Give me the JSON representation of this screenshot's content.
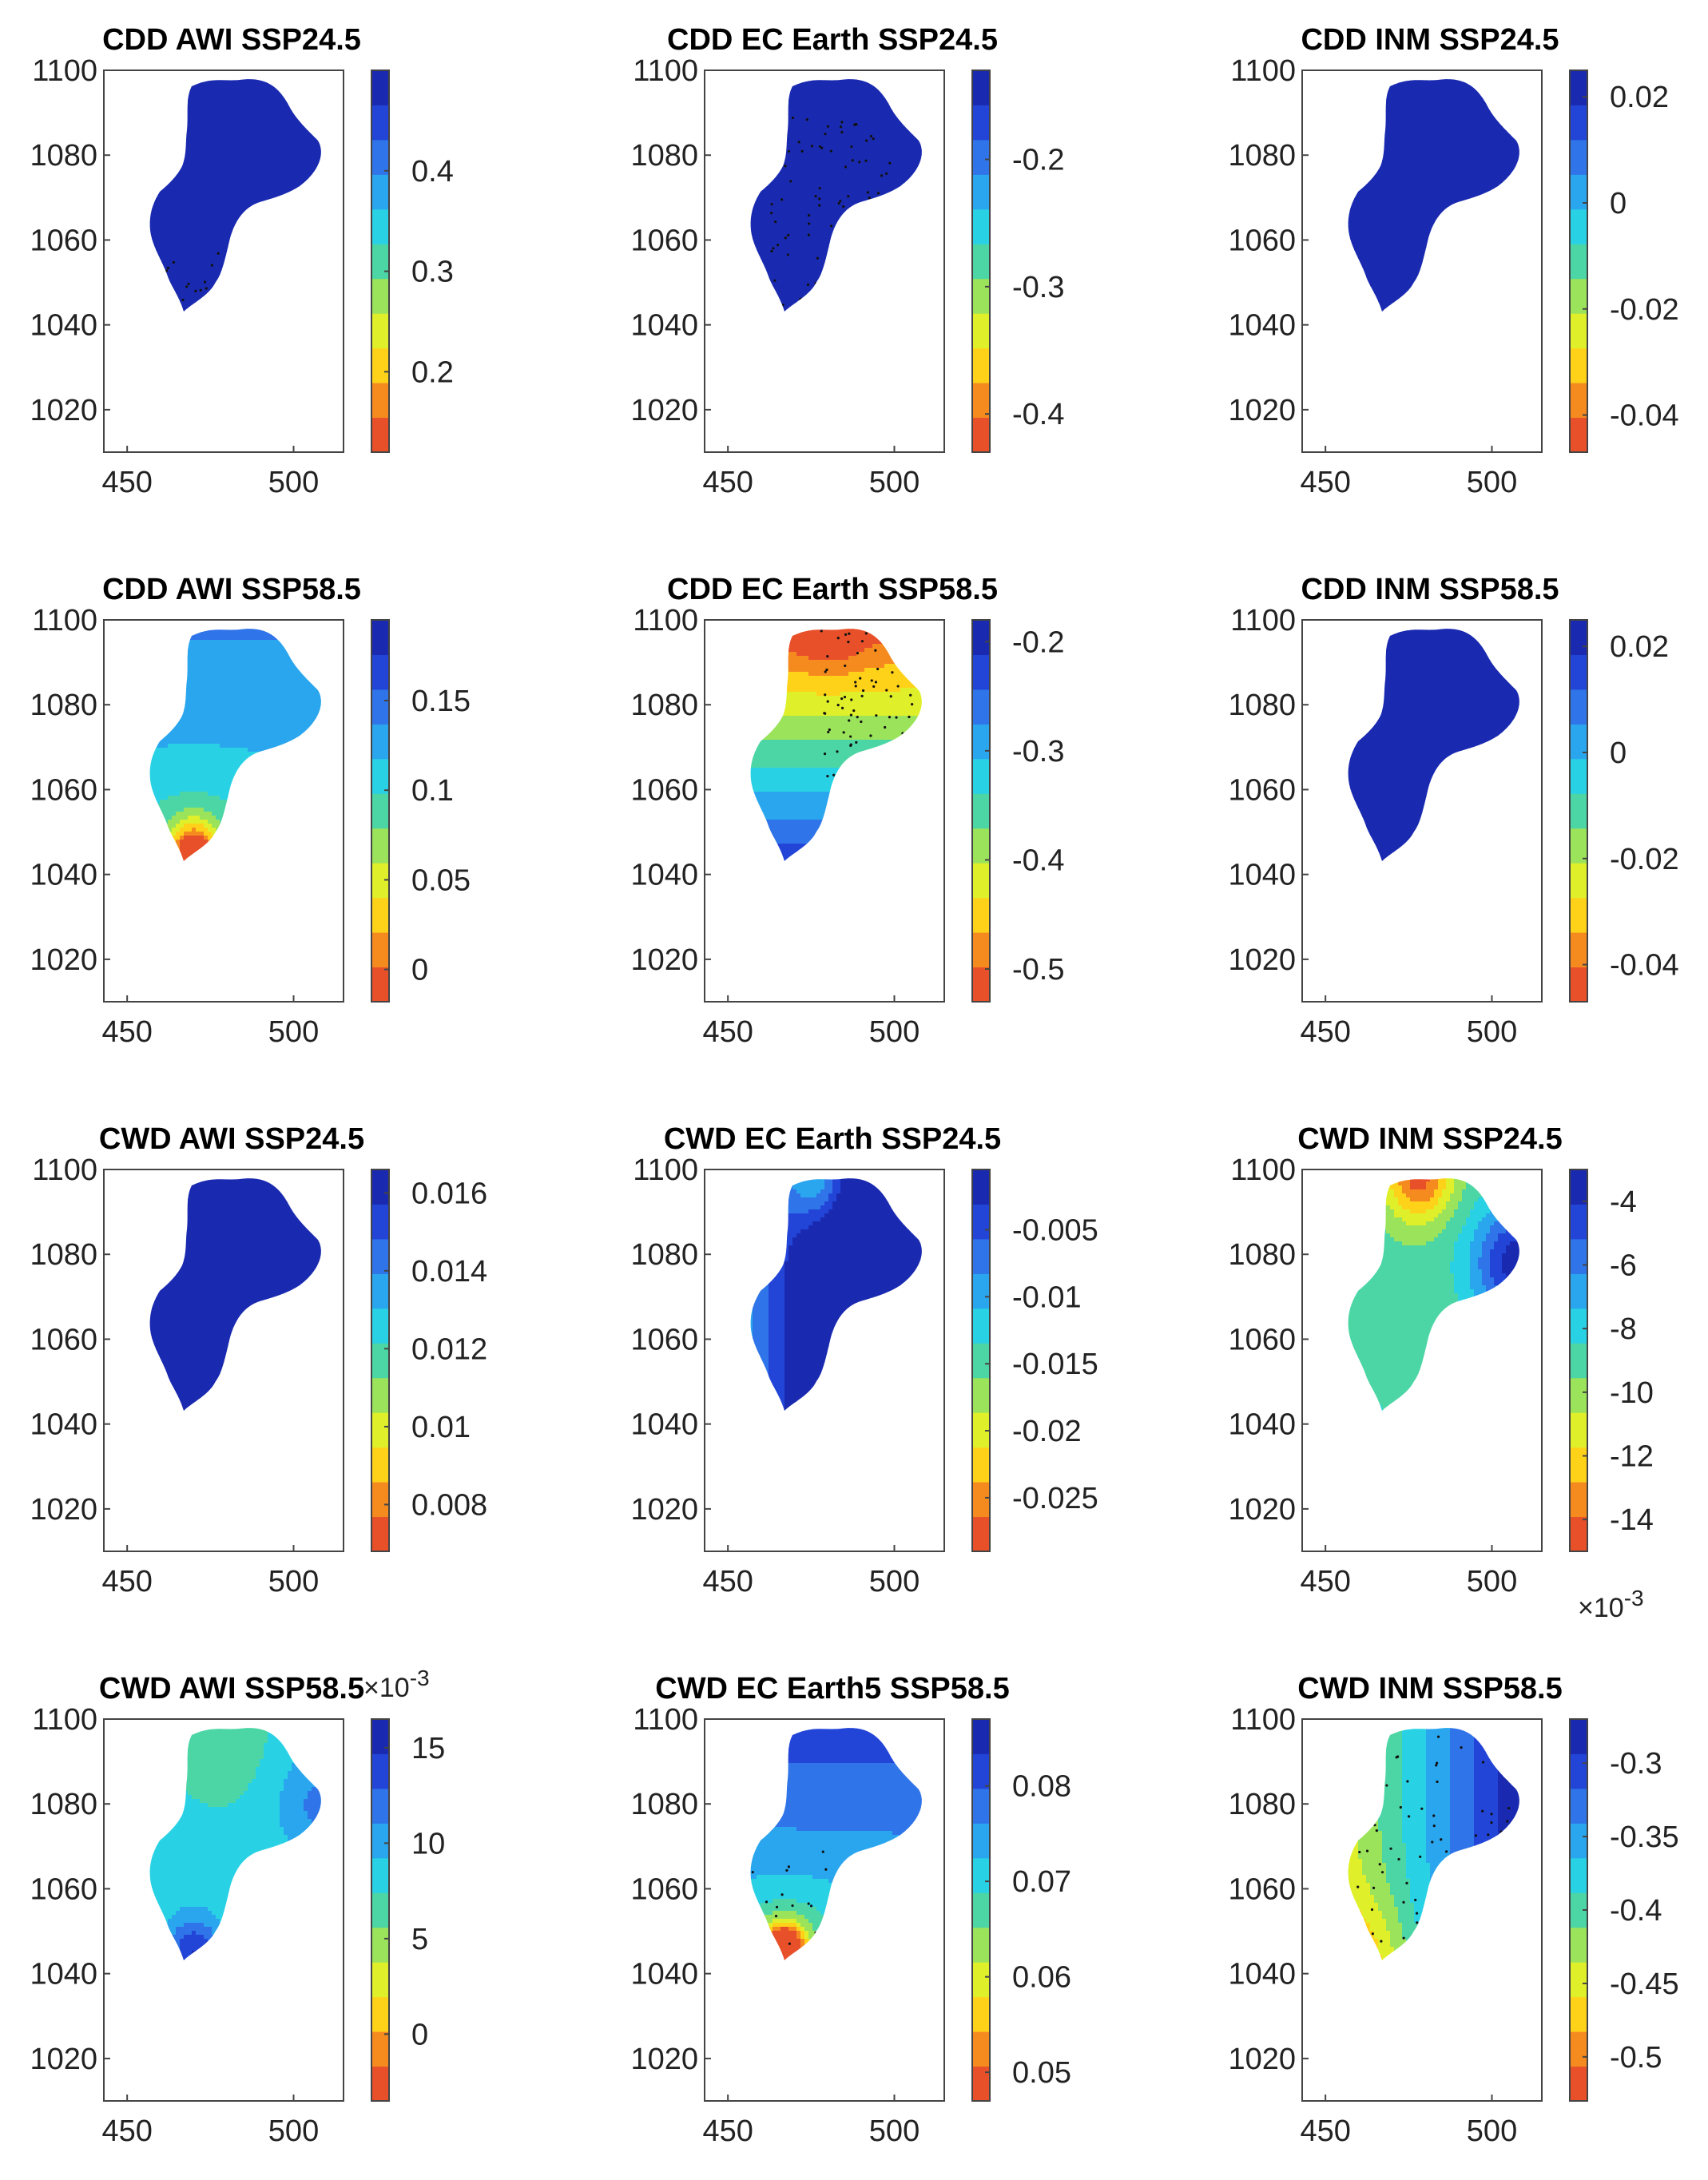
{
  "chart_data": [
    {
      "type": "heatmap",
      "title": "CDD AWI SSP24.5",
      "xticks": [
        "450",
        "500"
      ],
      "yticks": [
        "1100",
        "1080",
        "1060",
        "1040",
        "1020"
      ],
      "xlim": [
        443,
        515
      ],
      "ylim": [
        1010,
        1100
      ],
      "colorbar": {
        "ticks": [
          "0.4",
          "0.3",
          "0.2"
        ],
        "tick_values": [
          0.4,
          0.3,
          0.2
        ],
        "range": [
          0.12,
          0.5
        ],
        "exponent": ""
      },
      "field": {
        "base": 0.42,
        "gx": 0.0,
        "gy": 0.0004,
        "spots": [
          {
            "x": 470,
            "y": 1048,
            "amp": 0.08,
            "s": 5
          },
          {
            "x": 455,
            "y": 1030,
            "amp": -0.26,
            "s": 7
          },
          {
            "x": 467,
            "y": 1025,
            "amp": -0.12,
            "s": 12
          }
        ]
      },
      "stipple": [
        458,
        490,
        1012,
        1058
      ]
    },
    {
      "type": "heatmap",
      "title": "CDD EC Earth SSP24.5",
      "xticks": [
        "450",
        "500"
      ],
      "yticks": [
        "1100",
        "1080",
        "1060",
        "1040",
        "1020"
      ],
      "xlim": [
        443,
        515
      ],
      "ylim": [
        1010,
        1100
      ],
      "colorbar": {
        "ticks": [
          "-0.2",
          "-0.3",
          "-0.4"
        ],
        "tick_values": [
          -0.2,
          -0.3,
          -0.4
        ],
        "range": [
          -0.43,
          -0.13
        ],
        "exponent": ""
      },
      "field": {
        "base": -0.2,
        "gx": -0.001,
        "gy": 0.0008,
        "spots": [
          {
            "x": 460,
            "y": 1042,
            "amp": -0.22,
            "s": 16
          },
          {
            "x": 472,
            "y": 1005,
            "amp": 0.3,
            "s": 7
          }
        ]
      },
      "stipple": [
        462,
        500,
        1025,
        1090
      ]
    },
    {
      "type": "heatmap",
      "title": "CDD INM SSP24.5",
      "xticks": [
        "450",
        "500"
      ],
      "yticks": [
        "1100",
        "1080",
        "1060",
        "1040",
        "1020"
      ],
      "xlim": [
        443,
        515
      ],
      "ylim": [
        1010,
        1100
      ],
      "colorbar": {
        "ticks": [
          "0.02",
          "0",
          "-0.02",
          "-0.04"
        ],
        "tick_values": [
          0.02,
          0,
          -0.02,
          -0.04
        ],
        "range": [
          -0.047,
          0.025
        ],
        "exponent": ""
      },
      "field": {
        "base": 0.06,
        "gx": -0.00055,
        "gy": 0.00055,
        "spots": [
          {
            "x": 468,
            "y": 1045,
            "amp": -0.05,
            "s": 3
          },
          {
            "x": 468,
            "y": 1034,
            "amp": -0.02,
            "s": 16
          },
          {
            "x": 505,
            "y": 1088,
            "amp": -0.015,
            "s": 10
          }
        ]
      }
    },
    {
      "type": "heatmap",
      "title": "CDD AWI SSP58.5",
      "xticks": [
        "450",
        "500"
      ],
      "yticks": [
        "1100",
        "1080",
        "1060",
        "1040",
        "1020"
      ],
      "xlim": [
        443,
        515
      ],
      "ylim": [
        1010,
        1100
      ],
      "colorbar": {
        "ticks": [
          "0.15",
          "0.1",
          "0.05",
          "0"
        ],
        "tick_values": [
          0.15,
          0.1,
          0.05,
          0
        ],
        "range": [
          -0.018,
          0.195
        ],
        "exponent": ""
      },
      "field": {
        "base": -0.63,
        "gx": 0.0,
        "gy": 0.0007,
        "spots": [
          {
            "x": 470,
            "y": 1045,
            "amp": -0.11,
            "s": 5
          },
          {
            "x": 470,
            "y": 1042,
            "amp": -0.035,
            "s": 12
          }
        ]
      }
    },
    {
      "type": "heatmap",
      "title": "CDD EC Earth SSP58.5",
      "xticks": [
        "450",
        "500"
      ],
      "yticks": [
        "1100",
        "1080",
        "1060",
        "1040",
        "1020"
      ],
      "xlim": [
        443,
        515
      ],
      "ylim": [
        1010,
        1100
      ],
      "colorbar": {
        "ticks": [
          "-0.2",
          "-0.3",
          "-0.4",
          "-0.5"
        ],
        "tick_values": [
          -0.2,
          -0.3,
          -0.4,
          -0.5
        ],
        "range": [
          -0.53,
          -0.18
        ],
        "exponent": ""
      },
      "field": {
        "base": 5.2,
        "gx": 0.0,
        "gy": -0.0052,
        "spots": [
          {
            "x": 480,
            "y": 1100,
            "amp": -0.06,
            "s": 8
          }
        ]
      },
      "stipple": [
        478,
        515,
        1062,
        1100
      ]
    },
    {
      "type": "heatmap",
      "title": "CDD INM SSP58.5",
      "xticks": [
        "450",
        "500"
      ],
      "yticks": [
        "1100",
        "1080",
        "1060",
        "1040",
        "1020"
      ],
      "xlim": [
        443,
        515
      ],
      "ylim": [
        1010,
        1100
      ],
      "colorbar": {
        "ticks": [
          "0.02",
          "0",
          "-0.02",
          "-0.04"
        ],
        "tick_values": [
          0.02,
          0,
          -0.02,
          -0.04
        ],
        "range": [
          -0.047,
          0.025
        ],
        "exponent": ""
      },
      "field": {
        "base": 0.06,
        "gx": -0.00055,
        "gy": 0.00055,
        "spots": [
          {
            "x": 468,
            "y": 1045,
            "amp": -0.05,
            "s": 3
          },
          {
            "x": 468,
            "y": 1034,
            "amp": -0.02,
            "s": 16
          },
          {
            "x": 505,
            "y": 1088,
            "amp": -0.015,
            "s": 10
          }
        ]
      }
    },
    {
      "type": "heatmap",
      "title": "CWD AWI SSP24.5",
      "xticks": [
        "450",
        "500"
      ],
      "yticks": [
        "1100",
        "1080",
        "1060",
        "1040",
        "1020"
      ],
      "xlim": [
        443,
        515
      ],
      "ylim": [
        1010,
        1100
      ],
      "colorbar": {
        "ticks": [
          "0.016",
          "0.014",
          "0.012",
          "0.01",
          "0.008"
        ],
        "tick_values": [
          0.016,
          0.014,
          0.012,
          0.01,
          0.008
        ],
        "range": [
          0.0068,
          0.0166
        ],
        "exponent": ""
      },
      "field": {
        "base": 0.0128,
        "gx": 6e-05,
        "gy": 0.0,
        "spots": [
          {
            "x": 480,
            "y": 1092,
            "amp": -0.006,
            "s": 8
          },
          {
            "x": 460,
            "y": 1028,
            "amp": -0.0055,
            "s": 7
          },
          {
            "x": 460,
            "y": 1048,
            "amp": -0.003,
            "s": 8
          },
          {
            "x": 512,
            "y": 1080,
            "amp": 0.002,
            "s": 8
          }
        ]
      }
    },
    {
      "type": "heatmap",
      "title": "CWD EC Earth SSP24.5",
      "xticks": [
        "450",
        "500"
      ],
      "yticks": [
        "1100",
        "1080",
        "1060",
        "1040",
        "1020"
      ],
      "xlim": [
        443,
        515
      ],
      "ylim": [
        1010,
        1100
      ],
      "colorbar": {
        "ticks": [
          "-0.005",
          "-0.01",
          "-0.015",
          "-0.02",
          "-0.025"
        ],
        "tick_values": [
          -0.005,
          -0.01,
          -0.015,
          -0.02,
          -0.025
        ],
        "range": [
          -0.029,
          -0.0005
        ],
        "exponent": ""
      },
      "field": {
        "base": -0.26,
        "gx": 0.00055,
        "gy": 0.0,
        "spots": [
          {
            "x": 478,
            "y": 1098,
            "amp": -0.012,
            "s": 8
          }
        ]
      }
    },
    {
      "type": "heatmap",
      "title": "CWD INM SSP24.5",
      "xticks": [
        "450",
        "500"
      ],
      "yticks": [
        "1100",
        "1080",
        "1060",
        "1040",
        "1020"
      ],
      "xlim": [
        443,
        515
      ],
      "ylim": [
        1010,
        1100
      ],
      "colorbar": {
        "ticks": [
          "-4",
          "-6",
          "-8",
          "-10",
          "-12",
          "-14"
        ],
        "tick_values": [
          -4,
          -6,
          -8,
          -10,
          -12,
          -14
        ],
        "range": [
          -15,
          -3
        ],
        "exponent": "×10",
        "exponent_power": "-3",
        "exponent_position": "below"
      },
      "field": {
        "base": -9.2,
        "gx": 0.0,
        "gy": 0.0,
        "spots": [
          {
            "x": 478,
            "y": 1098,
            "amp": -5.2,
            "s": 7
          },
          {
            "x": 508,
            "y": 1078,
            "amp": 5.8,
            "s": 10
          },
          {
            "x": 455,
            "y": 1032,
            "amp": 4.5,
            "s": 9
          },
          {
            "x": 470,
            "y": 1010,
            "amp": -1.5,
            "s": 8
          }
        ]
      }
    },
    {
      "type": "heatmap",
      "title": "CWD AWI SSP58.5",
      "xticks": [
        "450",
        "500"
      ],
      "yticks": [
        "1100",
        "1080",
        "1060",
        "1040",
        "1020"
      ],
      "xlim": [
        443,
        515
      ],
      "ylim": [
        1010,
        1100
      ],
      "colorbar": {
        "ticks": [
          "15",
          "10",
          "5",
          "0"
        ],
        "tick_values": [
          15,
          10,
          5,
          0
        ],
        "range": [
          -3.5,
          16.5
        ],
        "exponent": "×10",
        "exponent_power": "-3",
        "exponent_position": "above"
      },
      "field": {
        "base": 8.0,
        "gx": 0.0,
        "gy": 0.0,
        "spots": [
          {
            "x": 470,
            "y": 1045,
            "amp": 6.5,
            "s": 6
          },
          {
            "x": 456,
            "y": 1035,
            "amp": -14,
            "s": 2.5
          },
          {
            "x": 470,
            "y": 1020,
            "amp": 5,
            "s": 10
          },
          {
            "x": 508,
            "y": 1080,
            "amp": 3.5,
            "s": 9
          },
          {
            "x": 478,
            "y": 1095,
            "amp": -2,
            "s": 10
          }
        ]
      }
    },
    {
      "type": "heatmap",
      "title": "CWD EC Earth5 SSP58.5",
      "xticks": [
        "450",
        "500"
      ],
      "yticks": [
        "1100",
        "1080",
        "1060",
        "1040",
        "1020"
      ],
      "xlim": [
        443,
        515
      ],
      "ylim": [
        1010,
        1100
      ],
      "colorbar": {
        "ticks": [
          "0.08",
          "0.07",
          "0.06",
          "0.05"
        ],
        "tick_values": [
          0.08,
          0.07,
          0.06,
          0.05
        ],
        "range": [
          0.047,
          0.087
        ],
        "exponent": ""
      },
      "field": {
        "base": -0.16,
        "gx": 0.0,
        "gy": 0.00022,
        "spots": [
          {
            "x": 467,
            "y": 1046,
            "amp": -0.028,
            "s": 4
          },
          {
            "x": 467,
            "y": 1042,
            "amp": -0.008,
            "s": 12
          }
        ]
      },
      "stipple": [
        455,
        515,
        1012,
        1070
      ]
    },
    {
      "type": "heatmap",
      "title": "CWD INM SSP58.5",
      "xticks": [
        "450",
        "500"
      ],
      "yticks": [
        "1100",
        "1080",
        "1060",
        "1040",
        "1020"
      ],
      "xlim": [
        443,
        515
      ],
      "ylim": [
        1010,
        1100
      ],
      "colorbar": {
        "ticks": [
          "-0.3",
          "-0.35",
          "-0.4",
          "-0.45",
          "-0.5"
        ],
        "tick_values": [
          -0.3,
          -0.35,
          -0.4,
          -0.45,
          -0.5
        ],
        "range": [
          -0.53,
          -0.27
        ],
        "exponent": ""
      },
      "field": {
        "base": -1.95,
        "gx": 0.0033,
        "gy": 0.0,
        "spots": [
          {
            "x": 460,
            "y": 1040,
            "amp": -0.06,
            "s": 12
          },
          {
            "x": 472,
            "y": 1005,
            "amp": 0.2,
            "s": 6
          }
        ]
      },
      "stipple": [
        458,
        515,
        1015,
        1100
      ]
    }
  ]
}
